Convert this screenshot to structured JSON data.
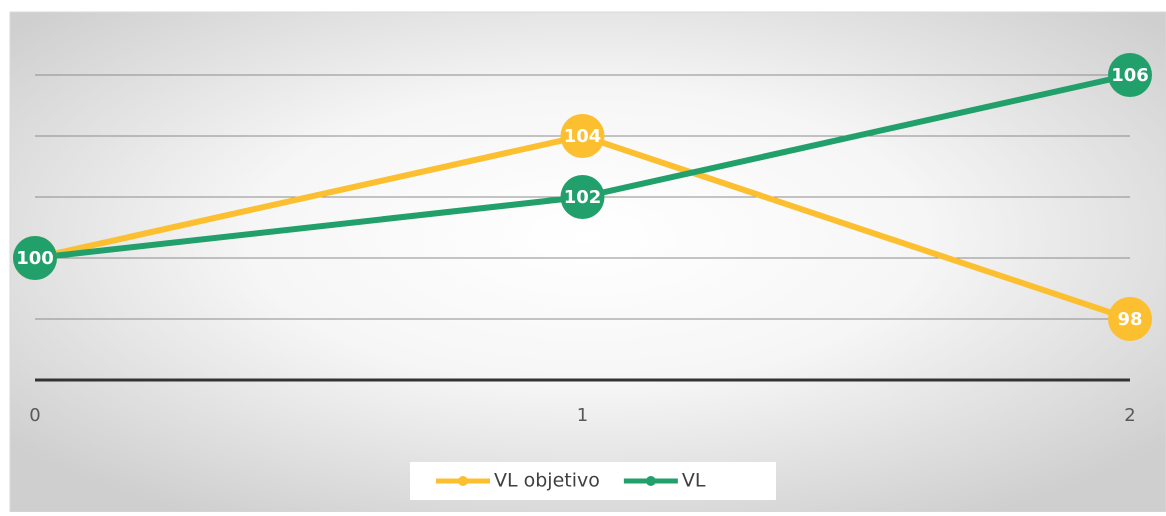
{
  "chart_data": {
    "type": "line",
    "x": [
      0,
      1,
      2
    ],
    "xlim": [
      0,
      2
    ],
    "xticks": [
      0,
      1,
      2
    ],
    "ylim": [
      96,
      106
    ],
    "yticks": [
      96,
      98,
      100,
      102,
      104,
      106
    ],
    "grid": true,
    "legend": "bottom",
    "series": [
      {
        "name": "VL objetivo",
        "color": "#fbbf2f",
        "values": [
          100,
          104,
          98
        ]
      },
      {
        "name": "VL",
        "color": "#22a06b",
        "values": [
          100,
          102,
          106
        ]
      }
    ]
  }
}
